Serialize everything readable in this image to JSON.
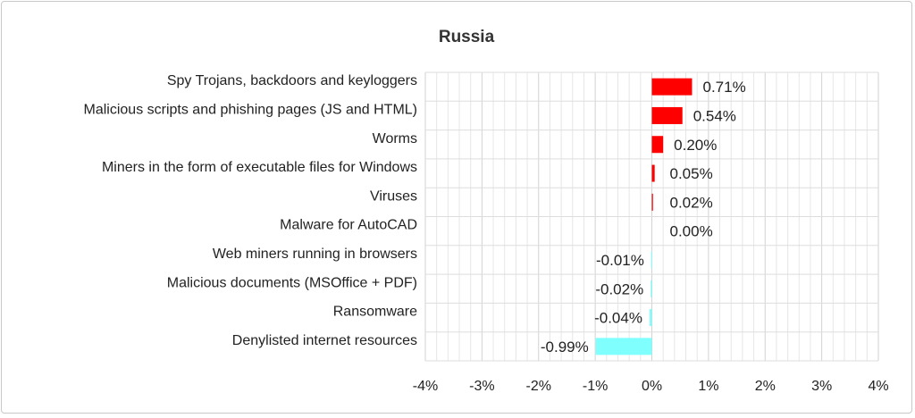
{
  "chart_data": {
    "type": "bar",
    "orientation": "horizontal",
    "title": "Russia",
    "xlabel": "",
    "ylabel": "",
    "xlim": [
      -4,
      4
    ],
    "x_tick_values": [
      -4,
      -3,
      -2,
      -1,
      0,
      1,
      2,
      3,
      4
    ],
    "x_tick_labels": [
      "-4%",
      "-3%",
      "-2%",
      "-1%",
      "0%",
      "1%",
      "2%",
      "3%",
      "4%"
    ],
    "grid": true,
    "legend": "none",
    "categories": [
      "Spy Trojans, backdoors and keyloggers",
      "Malicious scripts and phishing pages (JS and HTML)",
      "Worms",
      "Miners in the form of executable files for Windows",
      "Viruses",
      "Malware for AutoCAD",
      "Web miners running in browsers",
      "Malicious documents (MSOffice + PDF)",
      "Ransomware",
      "Denylisted internet resources"
    ],
    "values": [
      0.71,
      0.54,
      0.2,
      0.05,
      0.02,
      0.0,
      -0.01,
      -0.02,
      -0.04,
      -0.99
    ],
    "data_labels": [
      "0.71%",
      "0.54%",
      "0.20%",
      "0.05%",
      "0.02%",
      "0.00%",
      "-0.01%",
      "-0.02%",
      "-0.04%",
      "-0.99%"
    ],
    "positive_color": "#ff0000",
    "negative_color": "#80ffff"
  }
}
